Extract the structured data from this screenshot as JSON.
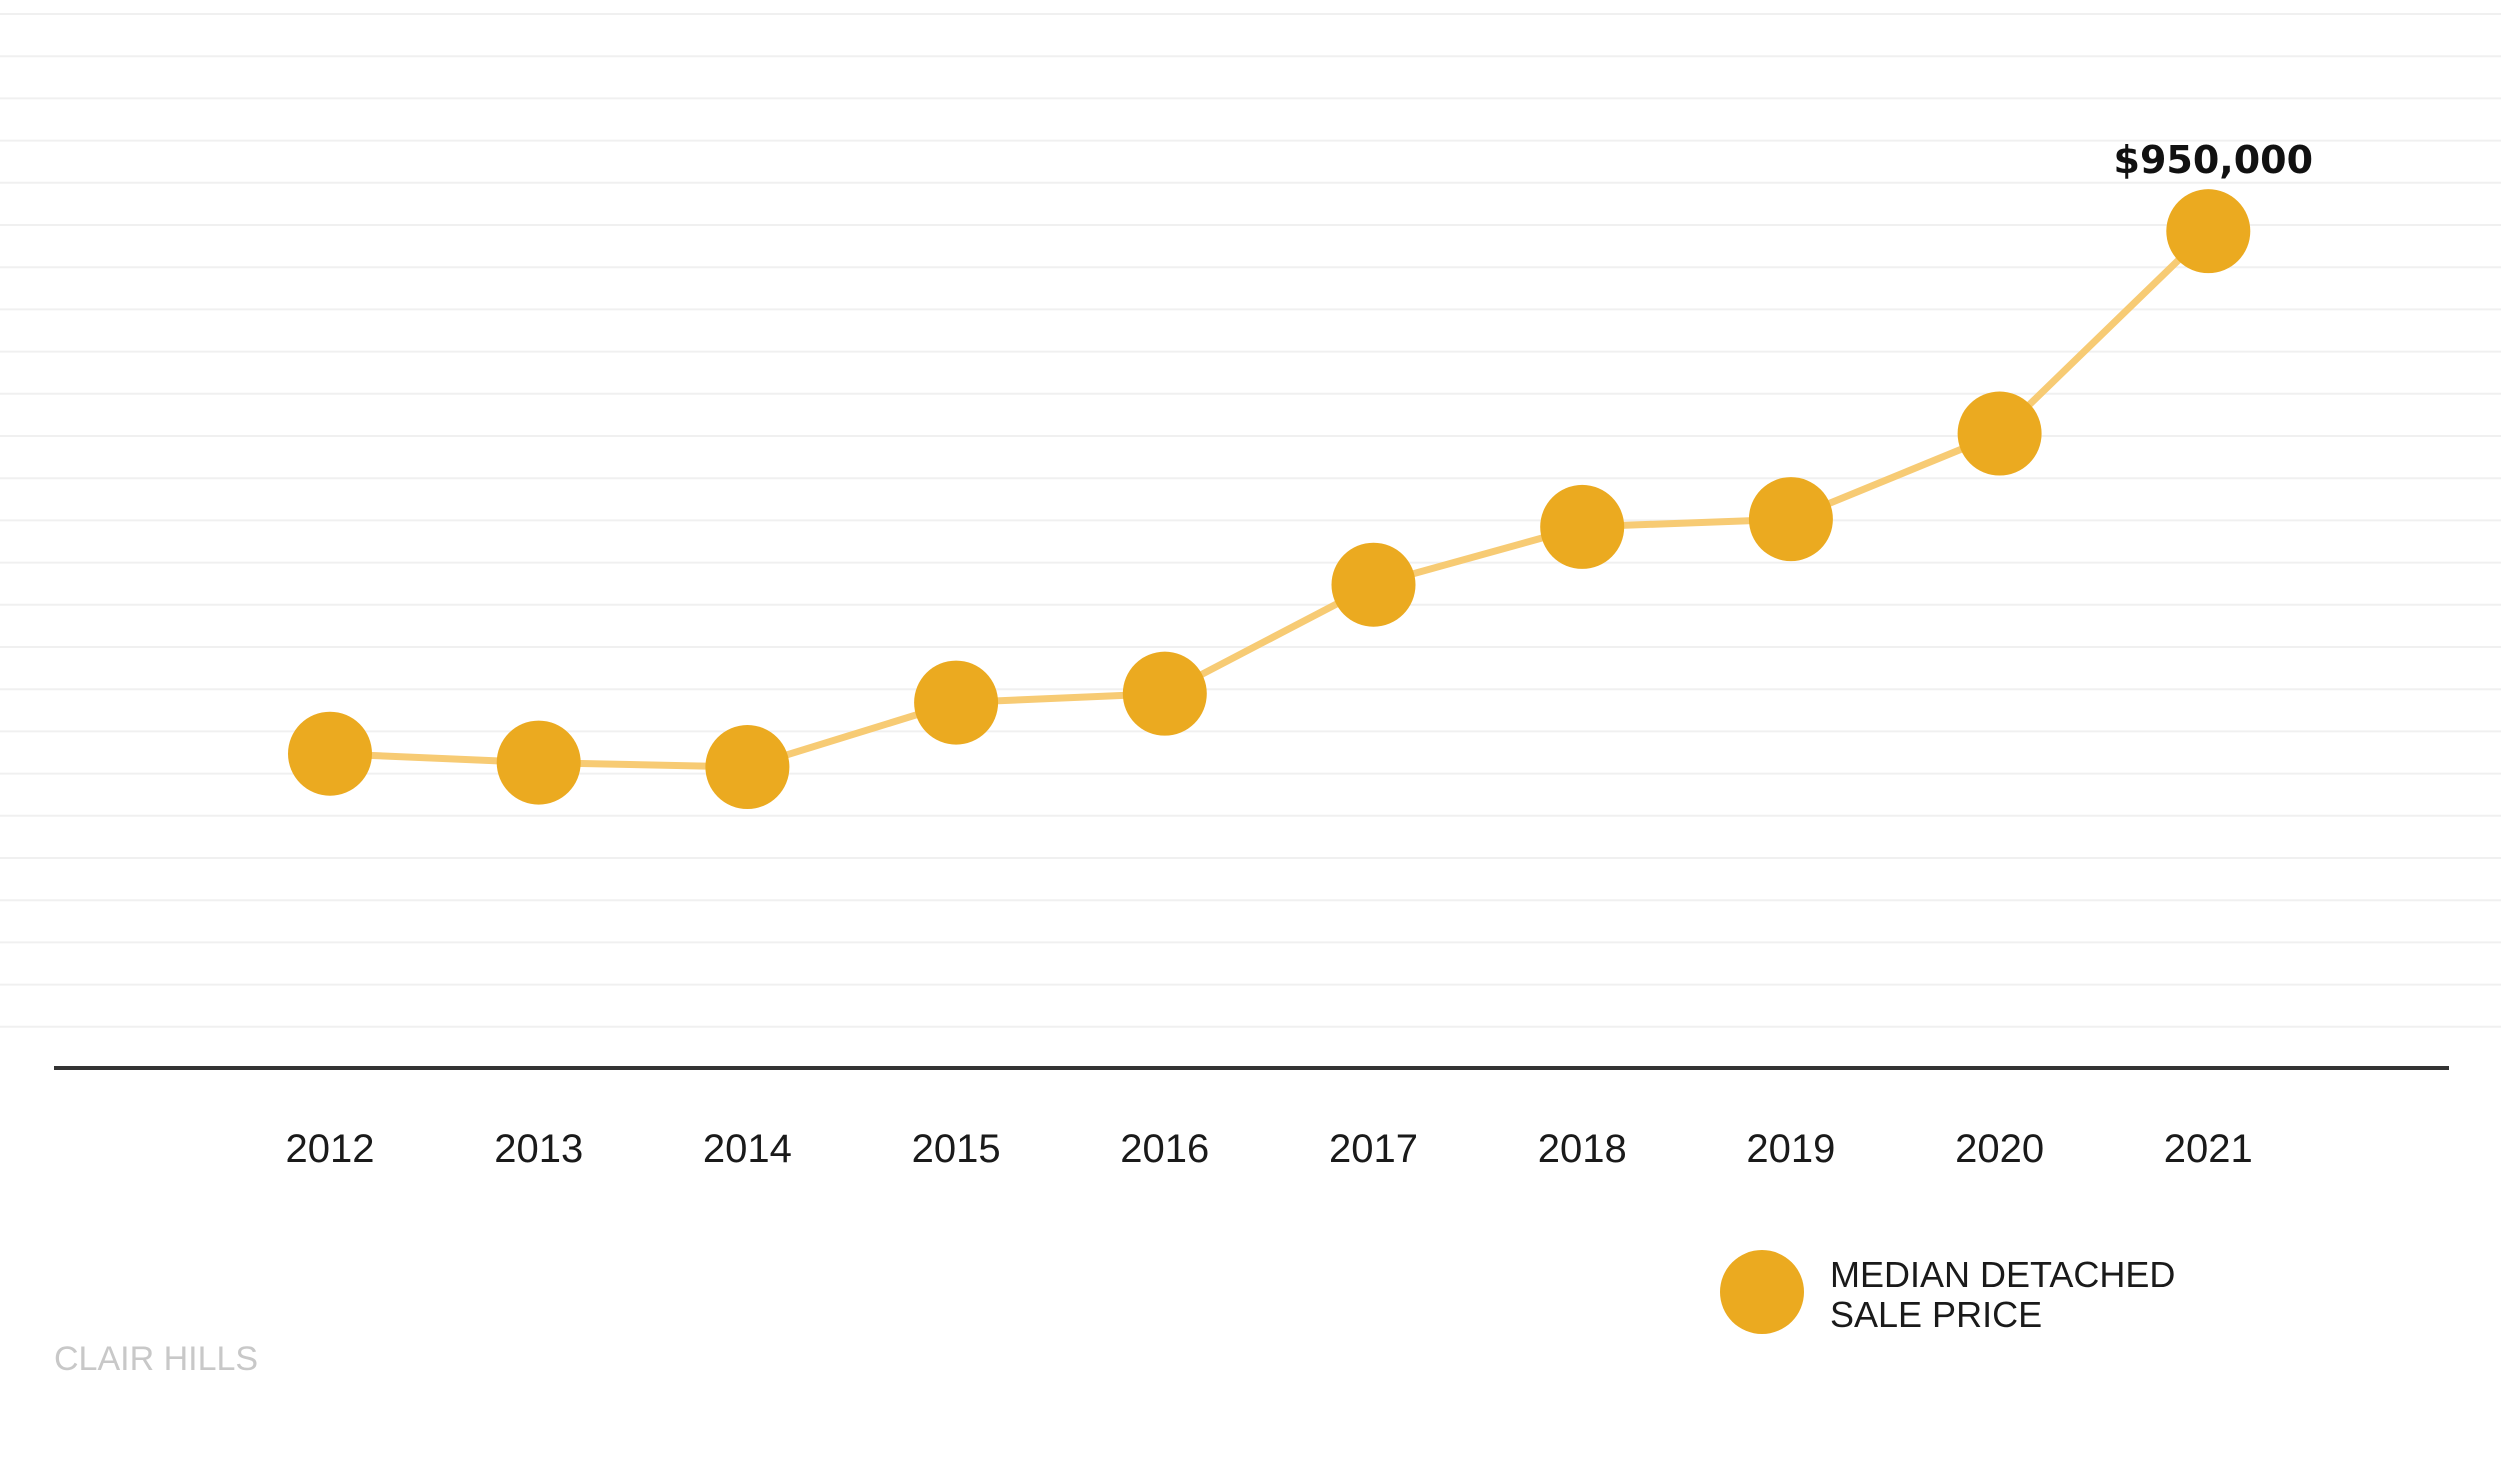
{
  "chart_data": {
    "type": "line",
    "x": [
      "2012",
      "2013",
      "2014",
      "2015",
      "2016",
      "2017",
      "2018",
      "2019",
      "2020",
      "2021"
    ],
    "series": [
      {
        "name": "MEDIAN DETACHED SALE PRICE",
        "values": [
          480000,
          472000,
          468000,
          526000,
          534000,
          632000,
          684000,
          691000,
          768000,
          950000
        ]
      }
    ],
    "value_labels": [
      {
        "x": "2021",
        "text": "$950,000"
      }
    ],
    "legend": {
      "position": "bottom-right",
      "lines": [
        "MEDIAN DETACHED",
        "SALE PRICE"
      ]
    },
    "ylim": [
      200000,
      1050000
    ],
    "grid": "horizontal",
    "colors": {
      "marker": "#EBAA20",
      "line": "#F7CB74",
      "gridline": "#f0f0f0",
      "axis": "#333333"
    }
  },
  "footer": {
    "source_text": "CLAIR HILLS"
  }
}
